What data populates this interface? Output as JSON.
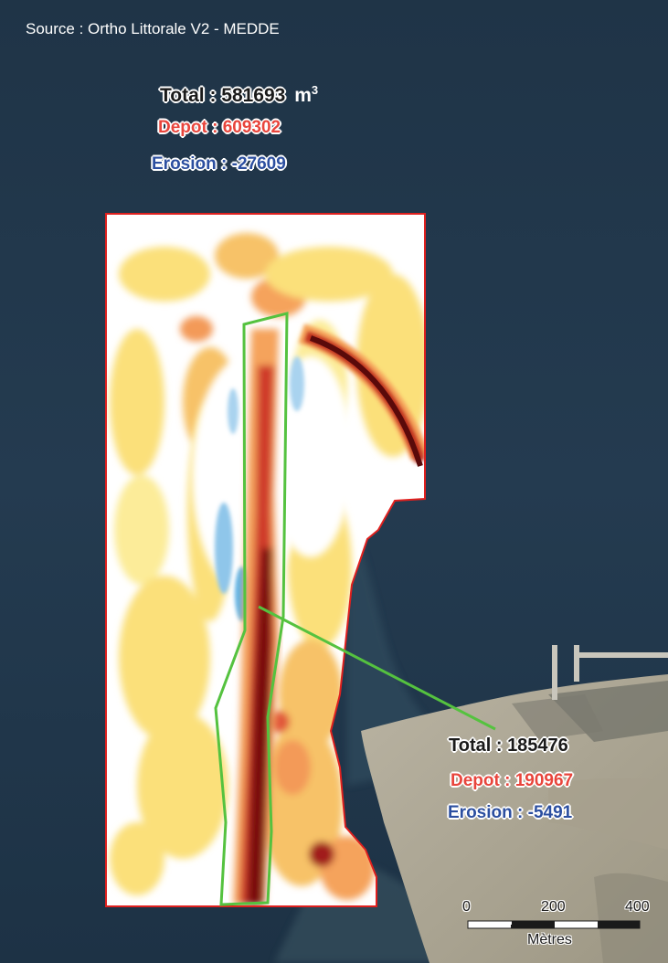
{
  "source_label": "Source : Ortho Littorale V2 - MEDDE",
  "zone_totals": {
    "total_label": "Total : 581693",
    "unit_base": "m",
    "unit_exp": "3",
    "depot_label": "Depot : 609302",
    "erosion_label": "Erosion : -27609"
  },
  "channel_totals": {
    "total_label": "Total : 185476",
    "depot_label": "Depot : 190967",
    "erosion_label": "Erosion : -5491"
  },
  "scale_bar": {
    "ticks": [
      "0",
      "200",
      "400"
    ],
    "unit_label": "Mètres"
  },
  "colors": {
    "sea": "#243a4e",
    "deposit_light": "#fbe07a",
    "deposit_mid": "#f5a35c",
    "deposit_high": "#cf3b2c",
    "deposit_max": "#5a0a0a",
    "erosion": "#8fc6ea",
    "channel_outline": "#55c23f",
    "zone_outline": "#e0201e"
  }
}
